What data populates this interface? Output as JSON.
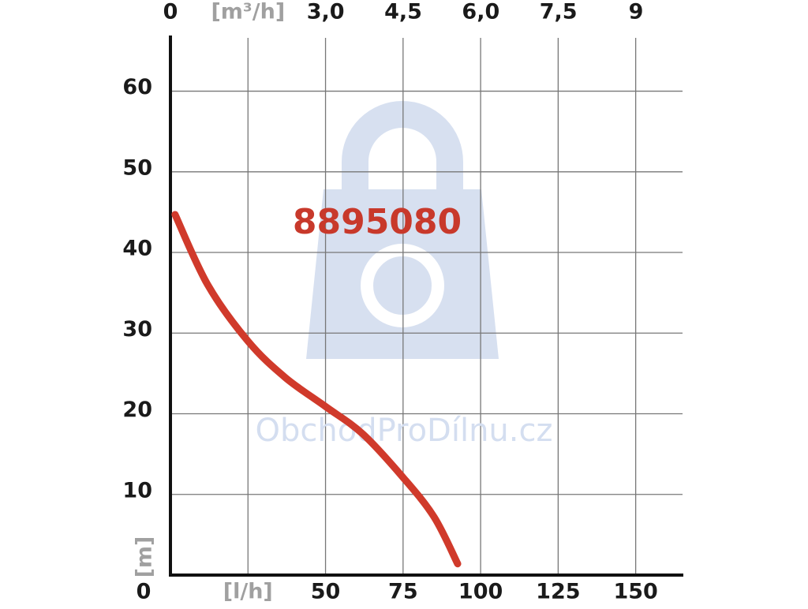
{
  "chart_data": {
    "type": "line",
    "x": [
      1.5,
      12,
      25,
      37,
      50,
      62,
      75,
      85,
      92.6
    ],
    "series": [
      {
        "name": "8895080",
        "color": "#d03a2b",
        "values": [
          44.7,
          36,
          29,
          24.5,
          20.9,
          17.5,
          12.1,
          7.2,
          1.4
        ]
      }
    ],
    "xlim": [
      0,
      165.1
    ],
    "ylim": [
      0,
      66.9
    ],
    "x2lim": [
      0,
      9.9
    ],
    "xticks": [
      0,
      {
        "value": 25,
        "label": "[l/h]"
      },
      50,
      75,
      100,
      125,
      150
    ],
    "x2ticks": [
      0,
      {
        "value": 1.5,
        "label": "[m³/h]"
      },
      {
        "value": 3,
        "label": "3,0"
      },
      {
        "value": 4.5,
        "label": "4,5"
      },
      {
        "value": 6,
        "label": "6,0"
      },
      {
        "value": 7.5,
        "label": "7,5"
      },
      9
    ],
    "yticks": [
      0,
      10,
      20,
      30,
      40,
      50,
      60
    ],
    "y_label": "[m]",
    "watermark": "ObchodProDílnu.cz",
    "grid": true
  }
}
